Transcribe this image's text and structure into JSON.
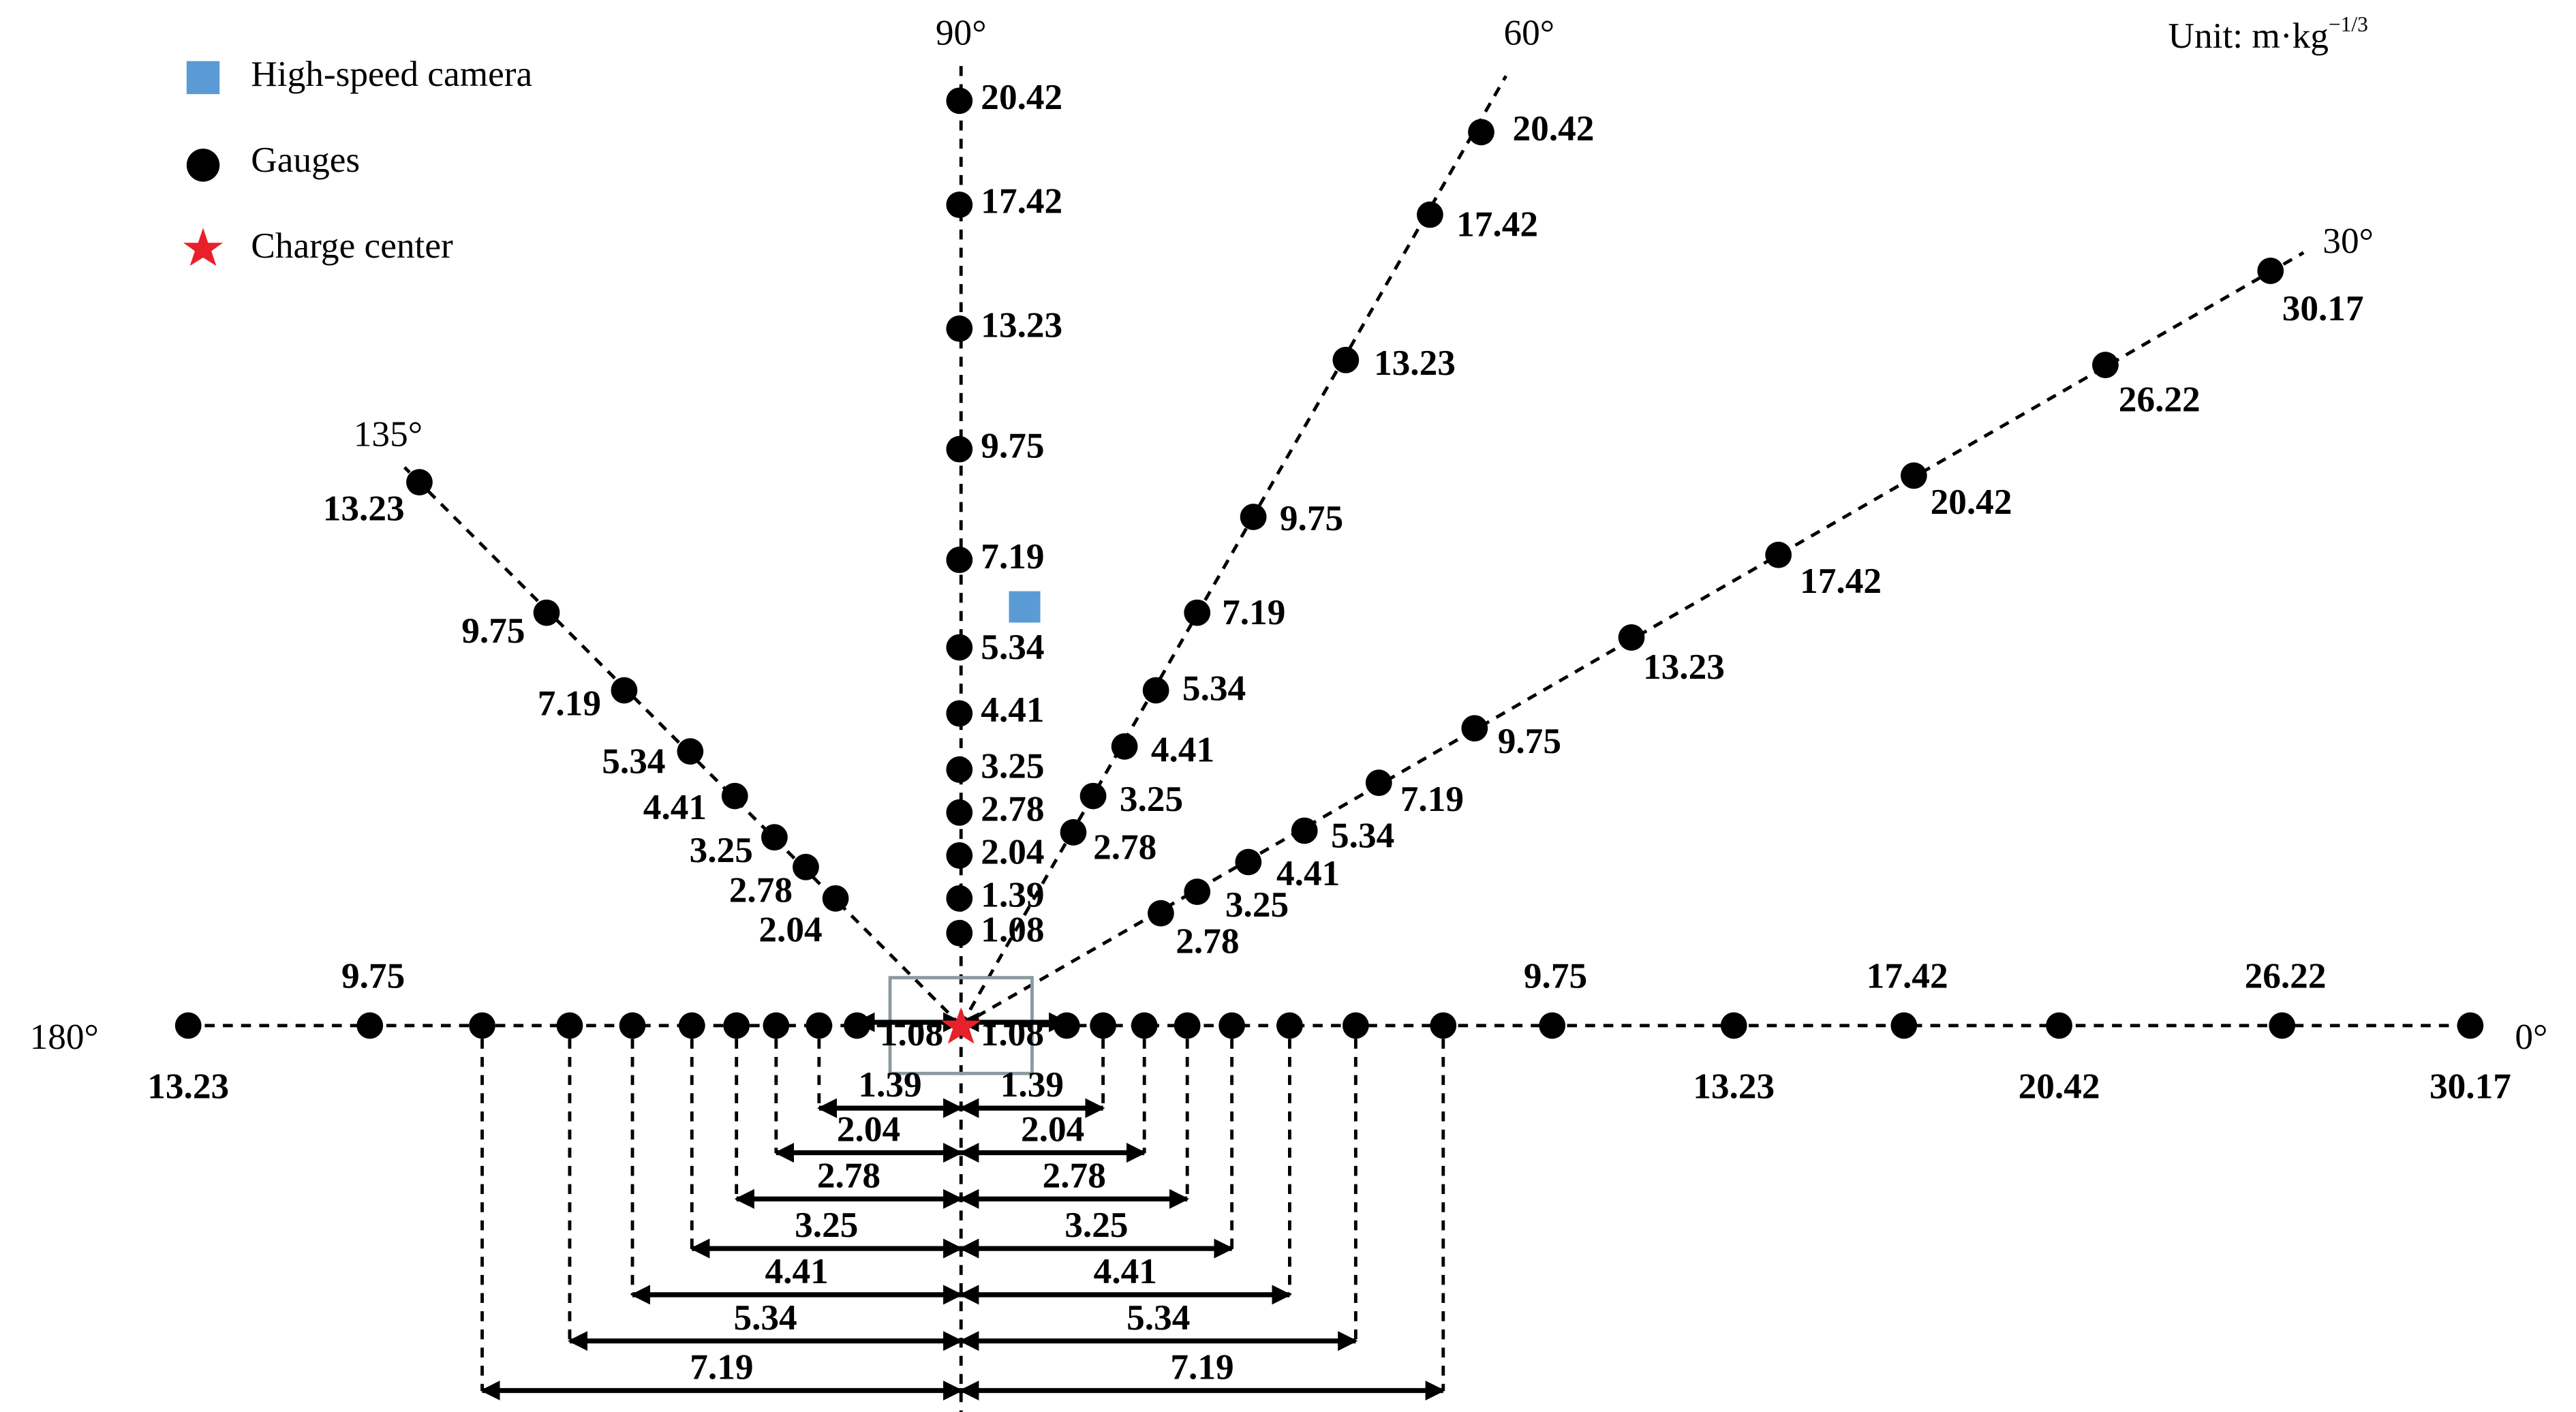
{
  "legend": [
    "High-speed camera",
    "Gauges",
    "Charge center"
  ],
  "unit": {
    "text": "Unit: m·kg",
    "exponent": "−1/3"
  },
  "rays": [
    {
      "angle": "90°",
      "gauges": [
        "1.08",
        "1.39",
        "2.04",
        "2.78",
        "3.25",
        "4.41",
        "5.34",
        "7.19",
        "9.75",
        "13.23",
        "17.42",
        "20.42"
      ]
    },
    {
      "angle": "60°",
      "gauges": [
        "2.78",
        "3.25",
        "4.41",
        "5.34",
        "7.19",
        "9.75",
        "13.23",
        "17.42",
        "20.42"
      ]
    },
    {
      "angle": "30°",
      "gauges": [
        "2.78",
        "3.25",
        "4.41",
        "5.34",
        "7.19",
        "9.75",
        "13.23",
        "17.42",
        "20.42",
        "26.22",
        "30.17"
      ]
    },
    {
      "angle": "135°",
      "gauges": [
        "2.04",
        "2.78",
        "3.25",
        "4.41",
        "5.34",
        "7.19",
        "9.75",
        "13.23"
      ]
    }
  ],
  "ground": {
    "left_angle": "180°",
    "right_angle": "0°",
    "left": [
      "1.08",
      "1.39",
      "2.04",
      "2.78",
      "3.25",
      "4.41",
      "5.34",
      "7.19",
      "9.75",
      "13.23"
    ],
    "right": [
      "1.08",
      "1.39",
      "2.04",
      "2.78",
      "3.25",
      "4.41",
      "5.34",
      "7.19",
      "9.75",
      "13.23",
      "17.42",
      "20.42",
      "26.22",
      "30.17"
    ]
  }
}
